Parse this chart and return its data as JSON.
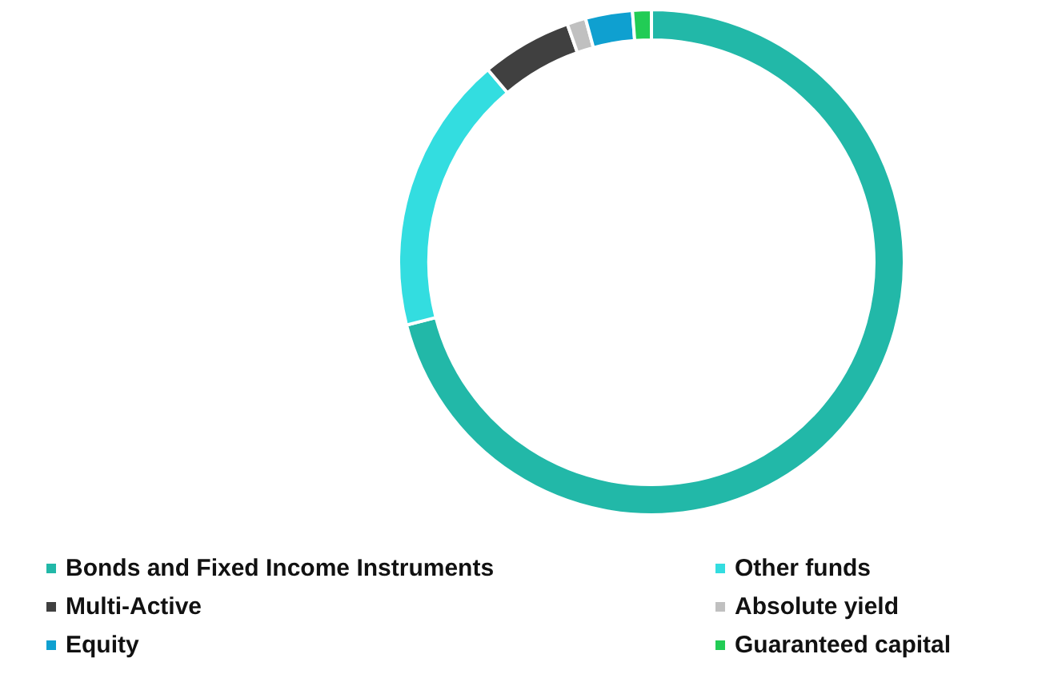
{
  "chart_data": {
    "type": "donut",
    "categories": [
      "Bonds and Fixed Income Instruments",
      "Other funds",
      "Multi-Active",
      "Absolute yield",
      "Equity",
      "Guaranteed capital"
    ],
    "values": [
      71,
      17.8,
      5.8,
      1.2,
      3,
      1.2
    ],
    "colors": [
      "#22b8a8",
      "#33dde0",
      "#404040",
      "#c0c0c0",
      "#0fa0d0",
      "#22cc55"
    ],
    "legend": "bottom"
  }
}
